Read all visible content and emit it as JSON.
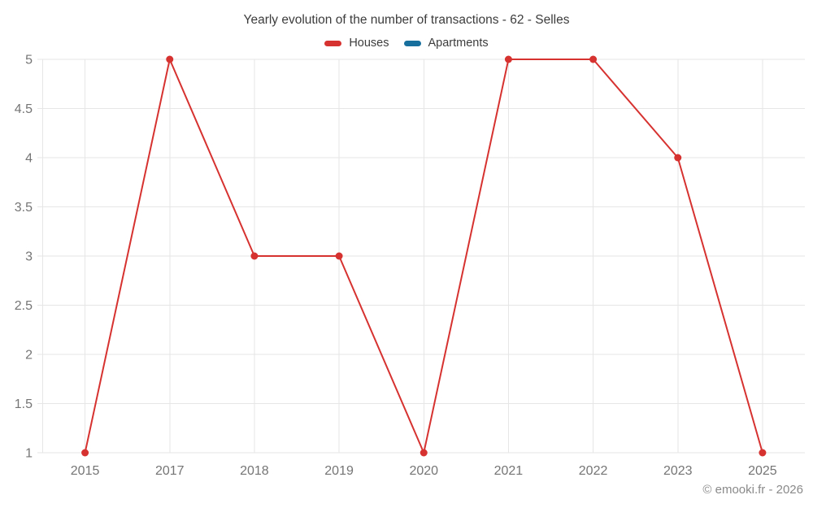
{
  "page": {
    "title": "Yearly evolution of the number of transactions - 62 - Selles",
    "footer": "© emooki.fr - 2026"
  },
  "chart_data": {
    "type": "line",
    "title": "Yearly evolution of the number of transactions - 62 - Selles",
    "categories": [
      "2015",
      "2017",
      "2018",
      "2019",
      "2020",
      "2021",
      "2022",
      "2023",
      "2025"
    ],
    "series": [
      {
        "name": "Houses",
        "color": "#d63230",
        "values": [
          1,
          5,
          3,
          3,
          1,
          5,
          5,
          4,
          1
        ]
      },
      {
        "name": "Apartments",
        "color": "#176f9e",
        "values": []
      }
    ],
    "xlabel": "",
    "ylabel": "",
    "ylim": [
      1,
      5
    ],
    "y_ticks": [
      1,
      1.5,
      2,
      2.5,
      3,
      3.5,
      4,
      4.5,
      5
    ],
    "grid": true,
    "legend_position": "top",
    "colors": {
      "grid": "#e6e6e6",
      "tick_label": "#757575",
      "title": "#3c3c3c",
      "footer": "#8a8a8a",
      "background": "#ffffff"
    }
  }
}
